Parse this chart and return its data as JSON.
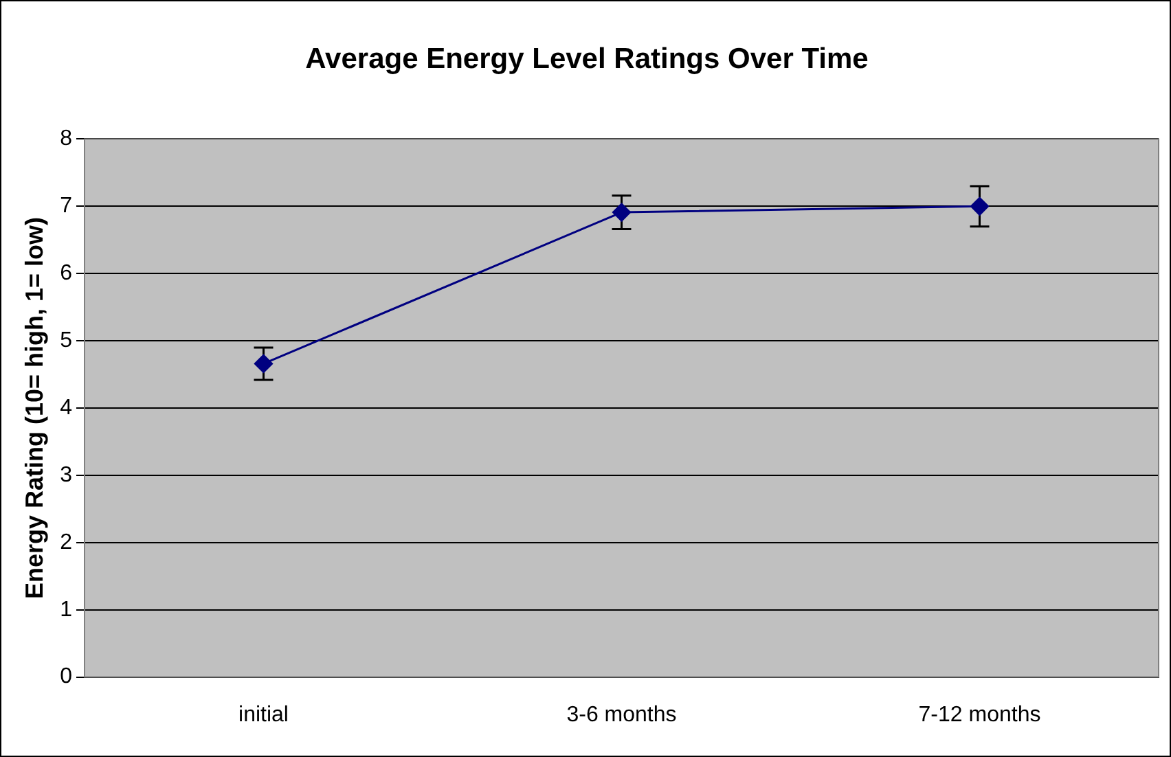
{
  "chart_data": {
    "type": "line",
    "title": "Average Energy Level Ratings Over Time",
    "ylabel": "Energy Rating (10= high, 1= low)",
    "categories": [
      "initial",
      "3-6 months",
      "7-12 months"
    ],
    "series": [
      {
        "color": "#000080",
        "values": [
          4.66,
          6.91,
          7.0
        ],
        "errors": [
          0.24,
          0.25,
          0.3
        ]
      }
    ],
    "ylim": [
      0,
      8
    ],
    "yticks": [
      0,
      1,
      2,
      3,
      4,
      5,
      6,
      7,
      8
    ],
    "grid": "y",
    "legend": false,
    "marker": "diamond",
    "line_style": "solid"
  }
}
